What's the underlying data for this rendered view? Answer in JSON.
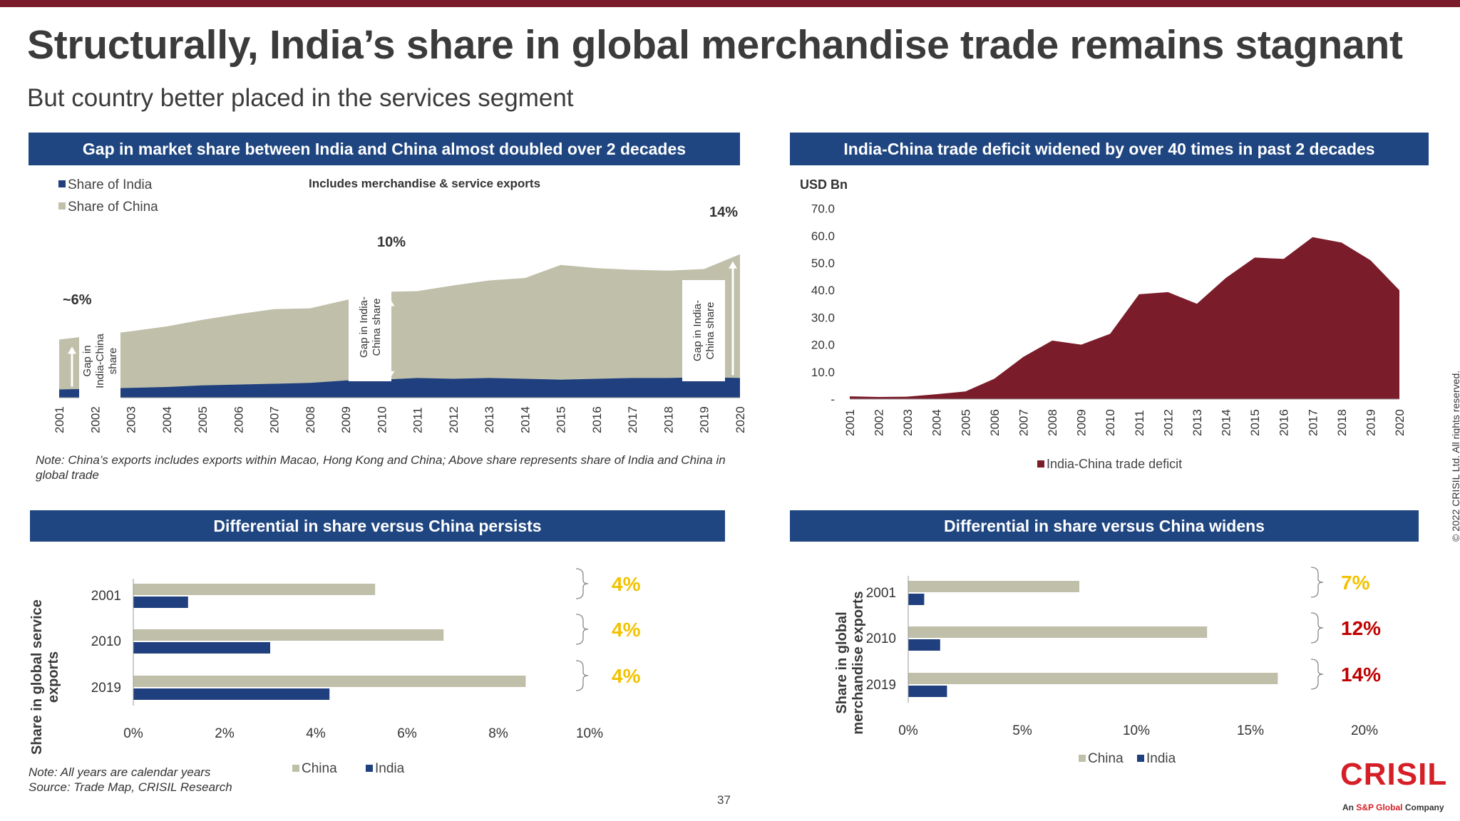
{
  "title": "Structurally, India’s share in global merchandise trade remains stagnant",
  "subtitle": "But country better placed in the services segment",
  "panels": {
    "top_left": {
      "banner": "Gap in market share between India and China almost doubled over 2 decades",
      "note": "Note: China’s exports includes exports within Macao, Hong Kong and China; Above share represents share of India and China in global trade"
    },
    "top_right": {
      "banner": "India-China trade deficit widened by over 40 times in past 2 decades"
    },
    "bottom_left": {
      "banner": "Differential in share versus China persists",
      "note_line1": "Note: All years are calendar years",
      "note_line2": "Source: Trade Map, CRISIL Research"
    },
    "bottom_right": {
      "banner": "Differential in share versus China widens"
    }
  },
  "page_number": "37",
  "copyright": "© 2022 CRISIL Ltd. All rights reserved.",
  "logo": {
    "name": "CRISIL",
    "tag_prefix": "An ",
    "tag_brand": "S&P Global",
    "tag_suffix": " Company"
  },
  "colors": {
    "china": "#bfbfaa",
    "india": "#1f3f7e",
    "deficit": "#7b1c2a",
    "banner": "#1f4681",
    "diff_yellow": "#f2c200",
    "diff_red": "#c00000"
  },
  "chart_data": [
    {
      "id": "share_area",
      "type": "area",
      "title": "",
      "annotation": "Includes merchandise & service exports",
      "x": [
        "2001",
        "2002",
        "2003",
        "2004",
        "2005",
        "2006",
        "2007",
        "2008",
        "2009",
        "2010",
        "2011",
        "2012",
        "2013",
        "2014",
        "2015",
        "2016",
        "2017",
        "2018",
        "2019",
        "2020"
      ],
      "series": [
        {
          "name": "Share of India",
          "values": [
            1.0,
            1.1,
            1.2,
            1.3,
            1.5,
            1.6,
            1.7,
            1.8,
            2.1,
            2.2,
            2.4,
            2.3,
            2.4,
            2.3,
            2.2,
            2.3,
            2.4,
            2.4,
            2.5,
            2.4
          ]
        },
        {
          "name": "Share of China",
          "values": [
            7.1,
            7.6,
            8.1,
            8.7,
            9.5,
            10.2,
            10.8,
            10.9,
            11.9,
            12.9,
            13.0,
            13.7,
            14.3,
            14.6,
            16.2,
            15.8,
            15.6,
            15.5,
            15.7,
            17.5
          ]
        }
      ],
      "callouts": [
        "~6%",
        "10%",
        "14%"
      ],
      "gap_labels": [
        "Gap in India-China share",
        "Gap in India-China share",
        "Gap in India-China share"
      ],
      "ylim": [
        0,
        18
      ]
    },
    {
      "id": "deficit_area",
      "type": "area",
      "ylabel": "USD Bn",
      "x": [
        "2001",
        "2002",
        "2003",
        "2004",
        "2005",
        "2006",
        "2007",
        "2008",
        "2009",
        "2010",
        "2011",
        "2012",
        "2013",
        "2014",
        "2015",
        "2016",
        "2017",
        "2018",
        "2019",
        "2020"
      ],
      "y_ticks": [
        "70.0",
        "60.0",
        "50.0",
        "40.0",
        "30.0",
        "20.0",
        "10.0",
        "-"
      ],
      "ylim": [
        0,
        70
      ],
      "series": [
        {
          "name": "India-China trade deficit",
          "values": [
            1.0,
            0.8,
            0.9,
            1.8,
            2.8,
            7.5,
            15.5,
            21.5,
            20.0,
            24.0,
            38.5,
            39.3,
            35.0,
            44.5,
            52.0,
            51.5,
            59.5,
            57.5,
            51.0,
            40.0
          ]
        }
      ]
    },
    {
      "id": "services_bar",
      "type": "bar",
      "orientation": "horizontal",
      "ylabel": "Share in global service exports",
      "categories": [
        "2001",
        "2010",
        "2019"
      ],
      "x_ticks": [
        "0%",
        "2%",
        "4%",
        "6%",
        "8%",
        "10%"
      ],
      "xlim": [
        0,
        10
      ],
      "series": [
        {
          "name": "China",
          "values": [
            5.3,
            6.8,
            8.6
          ]
        },
        {
          "name": "India",
          "values": [
            1.2,
            3.0,
            4.3
          ]
        }
      ],
      "differentials": [
        "4%",
        "4%",
        "4%"
      ]
    },
    {
      "id": "merch_bar",
      "type": "bar",
      "orientation": "horizontal",
      "ylabel": "Share in global merchandise exports",
      "categories": [
        "2001",
        "2010",
        "2019"
      ],
      "x_ticks": [
        "0%",
        "5%",
        "10%",
        "15%",
        "20%"
      ],
      "xlim": [
        0,
        20
      ],
      "series": [
        {
          "name": "China",
          "values": [
            7.5,
            13.1,
            16.2
          ]
        },
        {
          "name": "India",
          "values": [
            0.7,
            1.4,
            1.7
          ]
        }
      ],
      "differentials": [
        "7%",
        "12%",
        "14%"
      ]
    }
  ]
}
